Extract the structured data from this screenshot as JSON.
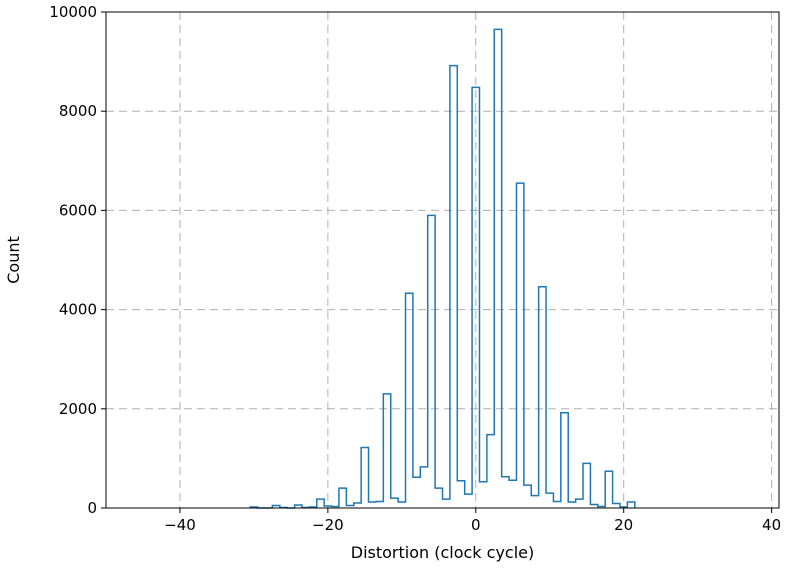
{
  "chart_data": {
    "type": "bar",
    "histtype": "step",
    "title": "",
    "xlabel": "Distortion (clock cycle)",
    "ylabel": "Count",
    "xlim": [
      -50,
      41
    ],
    "ylim": [
      0,
      10000
    ],
    "xticks": [
      -40,
      -20,
      0,
      20,
      40
    ],
    "yticks": [
      0,
      2000,
      4000,
      6000,
      8000,
      10000
    ],
    "grid": true,
    "bin_width": 1,
    "series_color": "#1f77b4",
    "bins": [
      {
        "x": -30,
        "count": 20
      },
      {
        "x": -29,
        "count": 0
      },
      {
        "x": -28,
        "count": 0
      },
      {
        "x": -27,
        "count": 50
      },
      {
        "x": -26,
        "count": 10
      },
      {
        "x": -25,
        "count": 0
      },
      {
        "x": -24,
        "count": 60
      },
      {
        "x": -23,
        "count": 10
      },
      {
        "x": -22,
        "count": 20
      },
      {
        "x": -21,
        "count": 180
      },
      {
        "x": -20,
        "count": 40
      },
      {
        "x": -19,
        "count": 30
      },
      {
        "x": -18,
        "count": 400
      },
      {
        "x": -17,
        "count": 50
      },
      {
        "x": -16,
        "count": 100
      },
      {
        "x": -15,
        "count": 1220
      },
      {
        "x": -14,
        "count": 120
      },
      {
        "x": -13,
        "count": 130
      },
      {
        "x": -12,
        "count": 2300
      },
      {
        "x": -11,
        "count": 200
      },
      {
        "x": -10,
        "count": 120
      },
      {
        "x": -9,
        "count": 4330
      },
      {
        "x": -8,
        "count": 620
      },
      {
        "x": -7,
        "count": 830
      },
      {
        "x": -6,
        "count": 5900
      },
      {
        "x": -5,
        "count": 400
      },
      {
        "x": -4,
        "count": 180
      },
      {
        "x": -3,
        "count": 8920
      },
      {
        "x": -2,
        "count": 550
      },
      {
        "x": -1,
        "count": 280
      },
      {
        "x": 0,
        "count": 8480
      },
      {
        "x": 1,
        "count": 530
      },
      {
        "x": 2,
        "count": 1480
      },
      {
        "x": 3,
        "count": 9650
      },
      {
        "x": 4,
        "count": 630
      },
      {
        "x": 5,
        "count": 560
      },
      {
        "x": 6,
        "count": 6550
      },
      {
        "x": 7,
        "count": 460
      },
      {
        "x": 8,
        "count": 250
      },
      {
        "x": 9,
        "count": 4460
      },
      {
        "x": 10,
        "count": 300
      },
      {
        "x": 11,
        "count": 130
      },
      {
        "x": 12,
        "count": 1920
      },
      {
        "x": 13,
        "count": 120
      },
      {
        "x": 14,
        "count": 180
      },
      {
        "x": 15,
        "count": 900
      },
      {
        "x": 16,
        "count": 70
      },
      {
        "x": 17,
        "count": 30
      },
      {
        "x": 18,
        "count": 740
      },
      {
        "x": 19,
        "count": 90
      },
      {
        "x": 20,
        "count": 20
      },
      {
        "x": 21,
        "count": 120
      }
    ]
  }
}
